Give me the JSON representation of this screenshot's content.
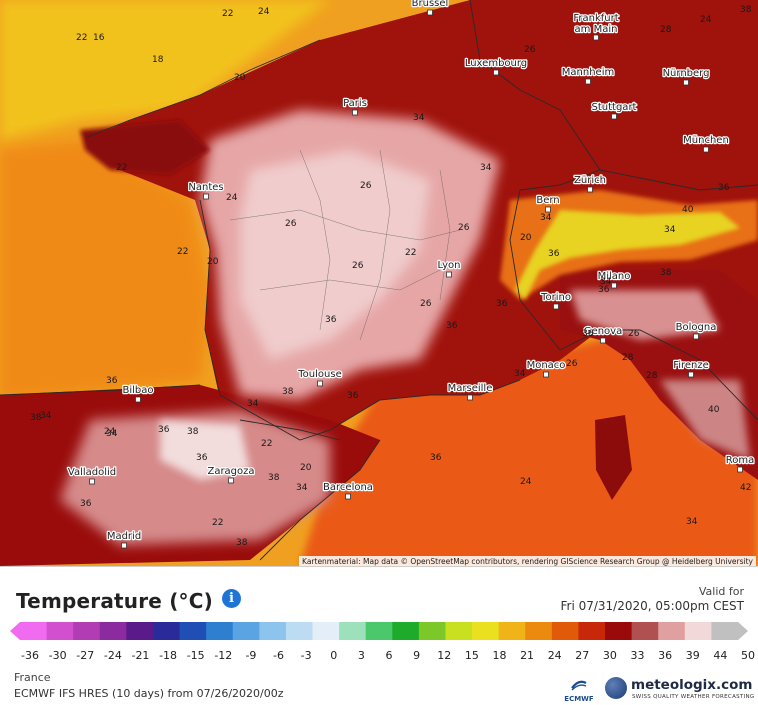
{
  "map": {
    "attribution": "Kartenmaterial: Map data © OpenStreetMap contributors, rendering GIScience Research Group @ Heidelberg University",
    "cities": [
      {
        "name": "Brüssel",
        "key": "bruessel"
      },
      {
        "name": "Frankfurt am Main",
        "key": "frankfurt"
      },
      {
        "name": "Luxembourg",
        "key": "luxembourg"
      },
      {
        "name": "Mannheim",
        "key": "mannheim"
      },
      {
        "name": "Nürnberg",
        "key": "nuernberg"
      },
      {
        "name": "Paris",
        "key": "paris"
      },
      {
        "name": "Stuttgart",
        "key": "stuttgart"
      },
      {
        "name": "München",
        "key": "muenchen"
      },
      {
        "name": "Zürich",
        "key": "zuerich"
      },
      {
        "name": "Nantes",
        "key": "nantes"
      },
      {
        "name": "Bern",
        "key": "bern"
      },
      {
        "name": "Lyon",
        "key": "lyon"
      },
      {
        "name": "Milano",
        "key": "milano"
      },
      {
        "name": "Torino",
        "key": "torino"
      },
      {
        "name": "Genova",
        "key": "genova"
      },
      {
        "name": "Bologna",
        "key": "bologna"
      },
      {
        "name": "Toulouse",
        "key": "toulouse"
      },
      {
        "name": "Monaco",
        "key": "monaco"
      },
      {
        "name": "Firenze",
        "key": "firenze"
      },
      {
        "name": "Bilbao",
        "key": "bilbao"
      },
      {
        "name": "Marseille",
        "key": "marseille"
      },
      {
        "name": "Valladolid",
        "key": "valladolid"
      },
      {
        "name": "Zaragoza",
        "key": "zaragoza"
      },
      {
        "name": "Barcelona",
        "key": "barcelona"
      },
      {
        "name": "Roma",
        "key": "roma"
      },
      {
        "name": "Madrid",
        "key": "madrid"
      }
    ],
    "isotherm_labels": [
      "22",
      "16",
      "18",
      "20",
      "22",
      "24",
      "22",
      "28",
      "24",
      "26",
      "34",
      "34",
      "26",
      "26",
      "24",
      "22",
      "20",
      "22",
      "26",
      "36",
      "36",
      "38",
      "36",
      "38",
      "34",
      "36",
      "38",
      "36",
      "34",
      "22",
      "20",
      "38",
      "34",
      "22",
      "34",
      "36",
      "38",
      "36",
      "24",
      "34",
      "40",
      "42",
      "34",
      "26",
      "38",
      "36",
      "34",
      "40",
      "36",
      "38",
      "34",
      "36",
      "36",
      "34",
      "36",
      "26",
      "28",
      "28",
      "26",
      "36",
      "26",
      "20",
      "24"
    ]
  },
  "legend": {
    "title": "Temperature (°C)",
    "valid_label": "Valid for",
    "valid_time": "Fri 07/31/2020, 05:00pm CEST",
    "scale_values": [
      "-36",
      "-30",
      "-27",
      "-24",
      "-21",
      "-18",
      "-15",
      "-12",
      "-9",
      "-6",
      "-3",
      "0",
      "3",
      "6",
      "9",
      "12",
      "15",
      "18",
      "21",
      "24",
      "27",
      "30",
      "33",
      "36",
      "39",
      "44",
      "50"
    ],
    "scale_colors": [
      "#f06bf0",
      "#d24fd0",
      "#b23cb4",
      "#8c2aa0",
      "#5a1a8a",
      "#2a2a9a",
      "#1f4fb4",
      "#2f7fd0",
      "#5aa4e4",
      "#8cc4ee",
      "#bcdcf4",
      "#e4eef8",
      "#9ce0bc",
      "#4cc86c",
      "#1eaa2a",
      "#7cc828",
      "#c8e020",
      "#eae020",
      "#f0b418",
      "#ec8a10",
      "#e05a0a",
      "#c8280a",
      "#9a0a0a",
      "#b05050",
      "#e0a0a0",
      "#f2d8d8",
      "#c0c0c0"
    ],
    "region": "France",
    "model": "ECMWF IFS HRES (10 days) from 07/26/2020/00z"
  },
  "logos": {
    "ecmwf": "ECMWF",
    "meteologix": "meteologix.com",
    "meteologix_sub": "SWISS QUALITY WEATHER FORECASTING"
  },
  "colors": {
    "sea_warm": "#f29a1e",
    "land_hot": "#8c0a0a",
    "land_very_hot": "#e8b4b4",
    "alps_cool": "#e8e026"
  }
}
